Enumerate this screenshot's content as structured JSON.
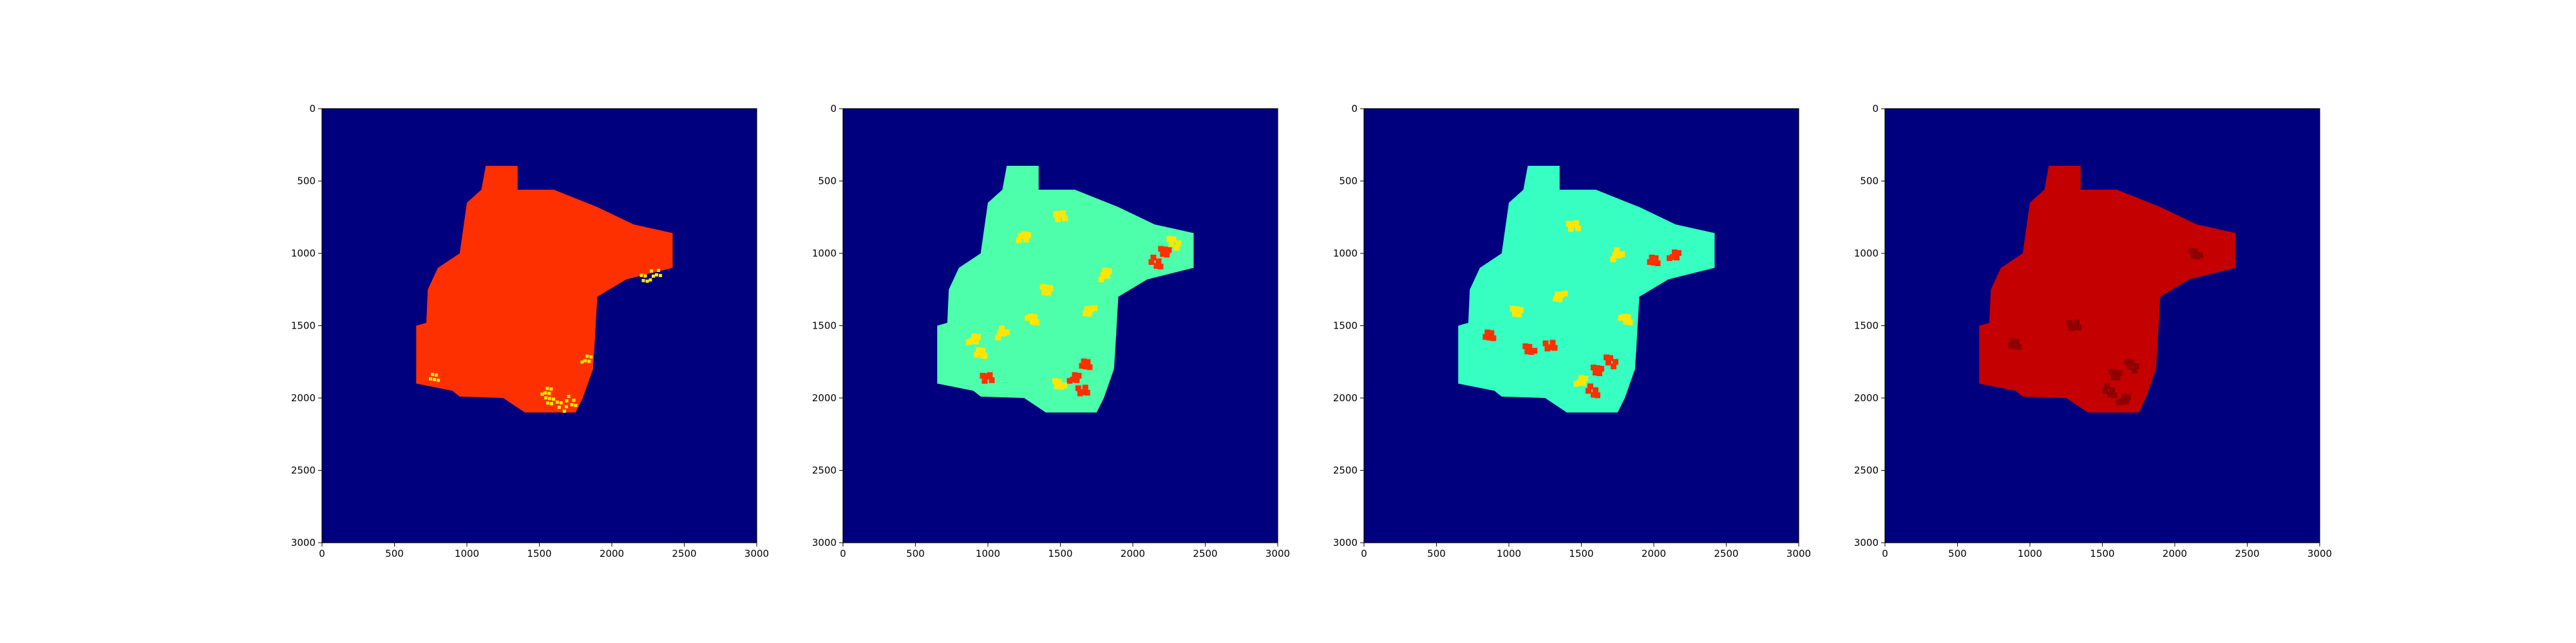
{
  "figure": {
    "background": "#ffffff",
    "colormap": "jet",
    "colors": {
      "background_class": "#00007f",
      "aqua": "#4dffaa",
      "cyan": "#36ffc1",
      "yellow": "#ffe600",
      "orange_red": "#ff3000",
      "red": "#e00000",
      "dark_red": "#c40000",
      "darker_red": "#8f0000"
    }
  },
  "chart_data": [
    {
      "type": "heatmap",
      "panel": 1,
      "xlim": [
        0,
        3000
      ],
      "ylim": [
        3000,
        0
      ],
      "x_ticks": [
        0,
        500,
        1000,
        1500,
        2000,
        2500,
        3000
      ],
      "y_ticks": [
        0,
        500,
        1000,
        1500,
        2000,
        2500,
        3000
      ],
      "x_tick_labels": [
        "0",
        "500",
        "1000",
        "1500",
        "2000",
        "2500",
        "3000"
      ],
      "y_tick_labels": [
        "0",
        "500",
        "1000",
        "1500",
        "2000",
        "2500",
        "3000"
      ],
      "background_value_color": "#00007f",
      "region_fill": "#ff3000",
      "region_outline": [
        [
          1130,
          395
        ],
        [
          1350,
          395
        ],
        [
          1350,
          560
        ],
        [
          1600,
          560
        ],
        [
          1900,
          680
        ],
        [
          2150,
          800
        ],
        [
          2420,
          860
        ],
        [
          2420,
          1100
        ],
        [
          2100,
          1180
        ],
        [
          1900,
          1300
        ],
        [
          1880,
          1650
        ],
        [
          1870,
          1800
        ],
        [
          1800,
          2000
        ],
        [
          1750,
          2100
        ],
        [
          1400,
          2100
        ],
        [
          1250,
          2000
        ],
        [
          950,
          1990
        ],
        [
          900,
          1950
        ],
        [
          650,
          1900
        ],
        [
          650,
          1500
        ],
        [
          720,
          1480
        ],
        [
          730,
          1250
        ],
        [
          800,
          1100
        ],
        [
          950,
          1000
        ],
        [
          1000,
          650
        ],
        [
          1100,
          560
        ]
      ],
      "speckles": [
        {
          "x": 1580,
          "y": 2030,
          "value_color": "#ffe600"
        },
        {
          "x": 1650,
          "y": 2060,
          "value_color": "#ffe600"
        },
        {
          "x": 1720,
          "y": 2020,
          "value_color": "#ffe600"
        },
        {
          "x": 1830,
          "y": 1720,
          "value_color": "#ffe600"
        },
        {
          "x": 780,
          "y": 1850,
          "value_color": "#ffe600"
        },
        {
          "x": 2240,
          "y": 1170,
          "value_color": "#ffe600"
        },
        {
          "x": 2300,
          "y": 1140,
          "value_color": "#ffe600"
        },
        {
          "x": 1550,
          "y": 1960,
          "value_color": "#ffe600"
        }
      ]
    },
    {
      "type": "heatmap",
      "panel": 2,
      "xlim": [
        0,
        3000
      ],
      "ylim": [
        3000,
        0
      ],
      "x_ticks": [
        0,
        500,
        1000,
        1500,
        2000,
        2500,
        3000
      ],
      "y_ticks": [
        0,
        500,
        1000,
        1500,
        2000,
        2500,
        3000
      ],
      "x_tick_labels": [
        "0",
        "500",
        "1000",
        "1500",
        "2000",
        "2500",
        "3000"
      ],
      "y_tick_labels": [
        "0",
        "500",
        "1000",
        "1500",
        "2000",
        "2500",
        "3000"
      ],
      "background_value_color": "#00007f",
      "region_fill": "#4dffaa",
      "region_outline": [
        [
          1130,
          395
        ],
        [
          1350,
          395
        ],
        [
          1350,
          560
        ],
        [
          1600,
          560
        ],
        [
          1900,
          680
        ],
        [
          2150,
          800
        ],
        [
          2420,
          860
        ],
        [
          2420,
          1100
        ],
        [
          2100,
          1180
        ],
        [
          1900,
          1300
        ],
        [
          1880,
          1650
        ],
        [
          1870,
          1800
        ],
        [
          1800,
          2000
        ],
        [
          1750,
          2100
        ],
        [
          1400,
          2100
        ],
        [
          1250,
          2000
        ],
        [
          950,
          1990
        ],
        [
          900,
          1950
        ],
        [
          650,
          1900
        ],
        [
          650,
          1500
        ],
        [
          720,
          1480
        ],
        [
          730,
          1250
        ],
        [
          800,
          1100
        ],
        [
          950,
          1000
        ],
        [
          1000,
          650
        ],
        [
          1100,
          560
        ]
      ],
      "hotspots": [
        {
          "x": 2230,
          "y": 1000,
          "value_color": "#ff3000"
        },
        {
          "x": 2280,
          "y": 930,
          "value_color": "#ffe600"
        },
        {
          "x": 2160,
          "y": 1060,
          "value_color": "#ff3000"
        },
        {
          "x": 1600,
          "y": 1850,
          "value_color": "#ff3000"
        },
        {
          "x": 1680,
          "y": 1760,
          "value_color": "#ff3000"
        },
        {
          "x": 1500,
          "y": 1900,
          "value_color": "#ffe600"
        },
        {
          "x": 1650,
          "y": 1950,
          "value_color": "#ff3000"
        },
        {
          "x": 900,
          "y": 1600,
          "value_color": "#ffe600"
        },
        {
          "x": 950,
          "y": 1700,
          "value_color": "#ffe600"
        },
        {
          "x": 1100,
          "y": 1550,
          "value_color": "#ffe600"
        },
        {
          "x": 1000,
          "y": 1850,
          "value_color": "#ff3000"
        },
        {
          "x": 1300,
          "y": 1450,
          "value_color": "#ffe600"
        },
        {
          "x": 1400,
          "y": 1250,
          "value_color": "#ffe600"
        },
        {
          "x": 1700,
          "y": 1400,
          "value_color": "#ffe600"
        },
        {
          "x": 1500,
          "y": 750,
          "value_color": "#ffe600"
        },
        {
          "x": 1250,
          "y": 900,
          "value_color": "#ffe600"
        },
        {
          "x": 1800,
          "y": 1150,
          "value_color": "#ffe600"
        }
      ]
    },
    {
      "type": "heatmap",
      "panel": 3,
      "xlim": [
        0,
        3000
      ],
      "ylim": [
        3000,
        0
      ],
      "x_ticks": [
        0,
        500,
        1000,
        1500,
        2000,
        2500,
        3000
      ],
      "y_ticks": [
        0,
        500,
        1000,
        1500,
        2000,
        2500,
        3000
      ],
      "x_tick_labels": [
        "0",
        "500",
        "1000",
        "1500",
        "2000",
        "2500",
        "3000"
      ],
      "y_tick_labels": [
        "0",
        "500",
        "1000",
        "1500",
        "2000",
        "2500",
        "3000"
      ],
      "background_value_color": "#00007f",
      "region_fill": "#36ffc1",
      "region_outline": [
        [
          1130,
          395
        ],
        [
          1350,
          395
        ],
        [
          1350,
          560
        ],
        [
          1600,
          560
        ],
        [
          1900,
          680
        ],
        [
          2150,
          800
        ],
        [
          2420,
          860
        ],
        [
          2420,
          1100
        ],
        [
          2100,
          1180
        ],
        [
          1900,
          1300
        ],
        [
          1880,
          1650
        ],
        [
          1870,
          1800
        ],
        [
          1800,
          2000
        ],
        [
          1750,
          2100
        ],
        [
          1400,
          2100
        ],
        [
          1250,
          2000
        ],
        [
          950,
          1990
        ],
        [
          900,
          1950
        ],
        [
          650,
          1900
        ],
        [
          650,
          1500
        ],
        [
          720,
          1480
        ],
        [
          730,
          1250
        ],
        [
          800,
          1100
        ],
        [
          950,
          1000
        ],
        [
          1000,
          650
        ],
        [
          1100,
          560
        ]
      ],
      "hotspots": [
        {
          "x": 1620,
          "y": 1820,
          "value_color": "#ff3000"
        },
        {
          "x": 1700,
          "y": 1750,
          "value_color": "#ff3000"
        },
        {
          "x": 1580,
          "y": 1950,
          "value_color": "#ff3000"
        },
        {
          "x": 1500,
          "y": 1870,
          "value_color": "#ffe600"
        },
        {
          "x": 870,
          "y": 1560,
          "value_color": "#ff3000"
        },
        {
          "x": 1150,
          "y": 1660,
          "value_color": "#ff3000"
        },
        {
          "x": 1280,
          "y": 1640,
          "value_color": "#ff3000"
        },
        {
          "x": 2140,
          "y": 1020,
          "value_color": "#ff3000"
        },
        {
          "x": 2000,
          "y": 1060,
          "value_color": "#ff3000"
        },
        {
          "x": 1750,
          "y": 1010,
          "value_color": "#ffe600"
        },
        {
          "x": 1450,
          "y": 800,
          "value_color": "#ffe600"
        },
        {
          "x": 1800,
          "y": 1450,
          "value_color": "#ffe600"
        },
        {
          "x": 1050,
          "y": 1400,
          "value_color": "#ffe600"
        },
        {
          "x": 1350,
          "y": 1300,
          "value_color": "#ffe600"
        }
      ]
    },
    {
      "type": "heatmap",
      "panel": 4,
      "xlim": [
        0,
        3000
      ],
      "ylim": [
        3000,
        0
      ],
      "x_ticks": [
        0,
        500,
        1000,
        1500,
        2000,
        2500,
        3000
      ],
      "y_ticks": [
        0,
        500,
        1000,
        1500,
        2000,
        2500,
        3000
      ],
      "x_tick_labels": [
        "0",
        "500",
        "1000",
        "1500",
        "2000",
        "2500",
        "3000"
      ],
      "y_tick_labels": [
        "0",
        "500",
        "1000",
        "1500",
        "2000",
        "2500",
        "3000"
      ],
      "background_value_color": "#00007f",
      "region_fill": "#c40000",
      "region_outline": [
        [
          1130,
          395
        ],
        [
          1350,
          395
        ],
        [
          1350,
          560
        ],
        [
          1600,
          560
        ],
        [
          1900,
          680
        ],
        [
          2150,
          800
        ],
        [
          2420,
          860
        ],
        [
          2420,
          1100
        ],
        [
          2100,
          1180
        ],
        [
          1900,
          1300
        ],
        [
          1880,
          1650
        ],
        [
          1870,
          1800
        ],
        [
          1800,
          2000
        ],
        [
          1750,
          2100
        ],
        [
          1400,
          2100
        ],
        [
          1250,
          2000
        ],
        [
          950,
          1990
        ],
        [
          900,
          1950
        ],
        [
          650,
          1900
        ],
        [
          650,
          1500
        ],
        [
          720,
          1480
        ],
        [
          730,
          1250
        ],
        [
          800,
          1100
        ],
        [
          950,
          1000
        ],
        [
          1000,
          650
        ],
        [
          1100,
          560
        ]
      ],
      "hotspots": [
        {
          "x": 1600,
          "y": 1850,
          "value_color": "#8f0000"
        },
        {
          "x": 1700,
          "y": 1780,
          "value_color": "#8f0000"
        },
        {
          "x": 1550,
          "y": 1950,
          "value_color": "#8f0000"
        },
        {
          "x": 1650,
          "y": 2000,
          "value_color": "#8f0000"
        },
        {
          "x": 900,
          "y": 1620,
          "value_color": "#8f0000"
        },
        {
          "x": 2150,
          "y": 1000,
          "value_color": "#8f0000"
        },
        {
          "x": 1300,
          "y": 1500,
          "value_color": "#8f0000"
        }
      ]
    }
  ]
}
